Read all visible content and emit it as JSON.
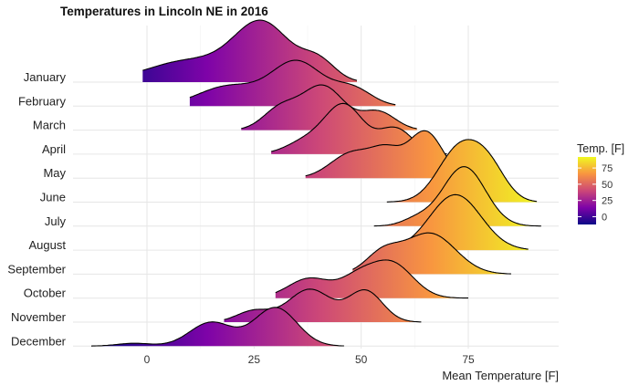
{
  "chart_data": {
    "type": "ridgeline",
    "title": "Temperatures in Lincoln NE in 2016",
    "xlabel": "Mean Temperature [F]",
    "ylabel": "",
    "xlim": [
      -14,
      95
    ],
    "x_ticks": [
      0,
      25,
      50,
      75
    ],
    "x_tick_labels": [
      "0",
      "25",
      "50",
      "75"
    ],
    "grid": true,
    "colormap": "plasma",
    "color_range": [
      -12,
      92
    ],
    "colors": {
      "low": "#0d0887",
      "mid_low": "#7e03a8",
      "mid": "#cc4778",
      "mid_high": "#f89540",
      "high": "#f0f921",
      "outline": "#000000",
      "grid": "#e6e6e6"
    },
    "legend": {
      "title": "Temp. [F]",
      "position": "right",
      "ticks": [
        0,
        25,
        50,
        75
      ],
      "tick_labels": [
        "0",
        "25",
        "50",
        "75"
      ]
    },
    "series": [
      {
        "name": "January",
        "range": [
          -1,
          49
        ],
        "peaks": [
          [
            10,
            10,
            0.38
          ],
          [
            27,
            6.5,
            1.0
          ],
          [
            40,
            4,
            0.35
          ]
        ]
      },
      {
        "name": "February",
        "range": [
          10,
          58
        ],
        "peaks": [
          [
            19,
            7,
            0.35
          ],
          [
            35,
            6,
            0.78
          ],
          [
            48,
            4.5,
            0.3
          ]
        ]
      },
      {
        "name": "March",
        "range": [
          22,
          63
        ],
        "peaks": [
          [
            31,
            4,
            0.36
          ],
          [
            41,
            5,
            0.78
          ],
          [
            54,
            4,
            0.32
          ]
        ]
      },
      {
        "name": "April",
        "range": [
          29,
          70
        ],
        "peaks": [
          [
            37,
            4.5,
            0.22
          ],
          [
            46,
            4.5,
            0.86
          ],
          [
            58,
            4,
            0.45
          ]
        ]
      },
      {
        "name": "May",
        "range": [
          37,
          78
        ],
        "peaks": [
          [
            48,
            5,
            0.45
          ],
          [
            56,
            3.5,
            0.4
          ],
          [
            65,
            4,
            0.82
          ]
        ]
      },
      {
        "name": "June",
        "range": [
          56,
          91
        ],
        "peaks": [
          [
            73,
            5,
            0.95
          ],
          [
            80,
            4,
            0.5
          ]
        ]
      },
      {
        "name": "July",
        "range": [
          53,
          92
        ],
        "peaks": [
          [
            63,
            3.5,
            0.12
          ],
          [
            74,
            5,
            1.05
          ]
        ]
      },
      {
        "name": "August",
        "range": [
          58,
          89
        ],
        "peaks": [
          [
            72,
            6,
            0.98
          ]
        ]
      },
      {
        "name": "September",
        "range": [
          48,
          85
        ],
        "peaks": [
          [
            55,
            4,
            0.35
          ],
          [
            66,
            6,
            0.72
          ]
        ]
      },
      {
        "name": "October",
        "range": [
          30,
          75
        ],
        "peaks": [
          [
            38,
            5,
            0.35
          ],
          [
            49,
            4,
            0.3
          ],
          [
            57,
            5,
            0.62
          ]
        ]
      },
      {
        "name": "November",
        "range": [
          18,
          64
        ],
        "peaks": [
          [
            25,
            4,
            0.2
          ],
          [
            38,
            5,
            0.58
          ],
          [
            51,
            4,
            0.55
          ]
        ]
      },
      {
        "name": "December",
        "range": [
          -13,
          46
        ],
        "peaks": [
          [
            -3,
            4,
            0.05
          ],
          [
            15,
            5,
            0.42
          ],
          [
            30,
            5,
            0.68
          ]
        ]
      }
    ]
  }
}
